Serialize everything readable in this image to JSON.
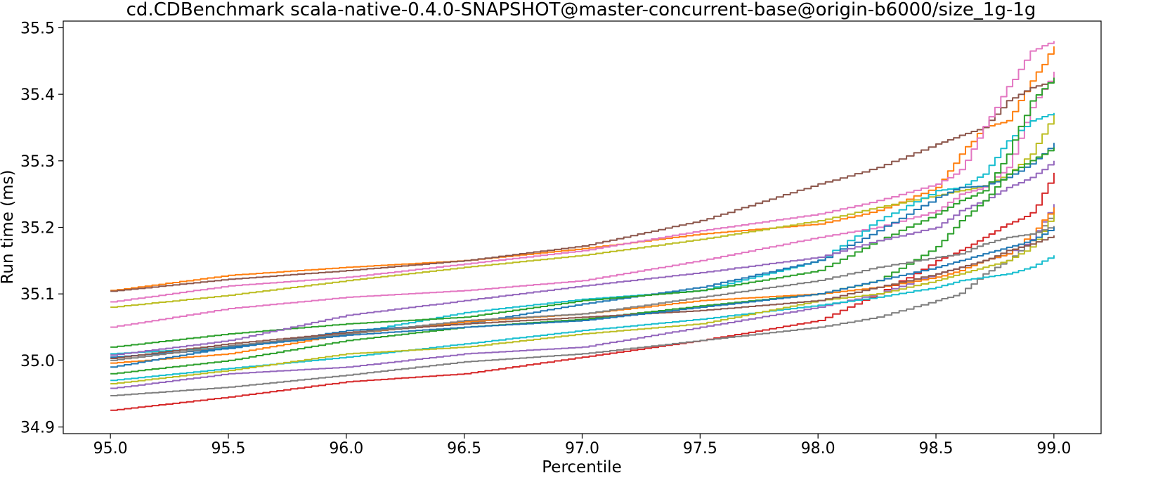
{
  "chart_data": {
    "type": "line",
    "title": "cd.CDBenchmark scala-native-0.4.0-SNAPSHOT@master-concurrent-base@origin-b6000/size_1g-1g",
    "xlabel": "Percentile",
    "ylabel": "Run time (ms)",
    "xlim": [
      94.8,
      99.2
    ],
    "ylim": [
      34.89,
      35.51
    ],
    "x_ticks": [
      "95.0",
      "95.5",
      "96.0",
      "96.5",
      "97.0",
      "97.5",
      "98.0",
      "98.5",
      "99.0"
    ],
    "y_ticks": [
      "34.9",
      "35.0",
      "35.1",
      "35.2",
      "35.3",
      "35.4",
      "35.5"
    ],
    "x_tick_values": [
      95.0,
      95.5,
      96.0,
      96.5,
      97.0,
      97.5,
      98.0,
      98.5,
      99.0
    ],
    "y_tick_values": [
      34.9,
      35.0,
      35.1,
      35.2,
      35.3,
      35.4,
      35.5
    ],
    "grid": false,
    "legend": "none",
    "x": [
      95.0,
      95.5,
      96.0,
      96.5,
      97.0,
      97.5,
      98.0,
      98.25,
      98.5,
      98.6,
      98.7,
      98.8,
      98.9,
      99.0
    ],
    "series": [
      {
        "color": "#ff7f0e",
        "values": [
          35.105,
          35.128,
          35.14,
          35.15,
          35.168,
          35.19,
          35.205,
          35.225,
          35.26,
          35.31,
          35.35,
          35.36,
          35.42,
          35.472
        ]
      },
      {
        "color": "#8c564b",
        "values": [
          35.104,
          35.122,
          35.135,
          35.15,
          35.172,
          35.21,
          35.265,
          35.29,
          35.325,
          35.338,
          35.35,
          35.39,
          35.41,
          35.42
        ]
      },
      {
        "color": "#e377c2",
        "values": [
          35.088,
          35.112,
          35.125,
          35.145,
          35.165,
          35.195,
          35.22,
          35.24,
          35.265,
          35.285,
          35.35,
          35.41,
          35.465,
          35.48
        ]
      },
      {
        "color": "#bcbd22",
        "values": [
          35.08,
          35.098,
          35.12,
          35.14,
          35.158,
          35.182,
          35.21,
          35.23,
          35.248,
          35.255,
          35.262,
          35.28,
          35.31,
          35.37
        ]
      },
      {
        "color": "#e377c2",
        "values": [
          35.05,
          35.078,
          35.095,
          35.105,
          35.12,
          35.15,
          35.185,
          35.2,
          35.225,
          35.25,
          35.26,
          35.29,
          35.38,
          35.434
        ]
      },
      {
        "color": "#17becf",
        "values": [
          35.01,
          35.02,
          35.04,
          35.072,
          35.092,
          35.105,
          35.15,
          35.21,
          35.255,
          35.26,
          35.28,
          35.33,
          35.36,
          35.372
        ]
      },
      {
        "color": "#1f77b4",
        "values": [
          35.005,
          35.018,
          35.045,
          35.055,
          35.085,
          35.11,
          35.15,
          35.195,
          35.245,
          35.26,
          35.262,
          35.275,
          35.295,
          35.327
        ]
      },
      {
        "color": "#2ca02c",
        "values": [
          35.02,
          35.04,
          35.055,
          35.065,
          35.09,
          35.105,
          35.135,
          35.18,
          35.22,
          35.24,
          35.255,
          35.31,
          35.39,
          35.425
        ]
      },
      {
        "color": "#9467bd",
        "values": [
          35.008,
          35.03,
          35.068,
          35.09,
          35.112,
          35.132,
          35.155,
          35.18,
          35.2,
          35.225,
          35.24,
          35.26,
          35.275,
          35.3
        ]
      },
      {
        "color": "#2ca02c",
        "values": [
          34.98,
          35.0,
          35.03,
          35.05,
          35.062,
          35.082,
          35.1,
          35.12,
          35.17,
          35.21,
          35.24,
          35.28,
          35.3,
          35.32
        ]
      },
      {
        "color": "#d62728",
        "values": [
          34.925,
          34.945,
          34.968,
          34.98,
          35.005,
          35.03,
          35.06,
          35.1,
          35.15,
          35.165,
          35.185,
          35.205,
          35.22,
          35.282
        ]
      },
      {
        "color": "#7f7f7f",
        "values": [
          34.947,
          34.96,
          34.978,
          34.998,
          35.01,
          35.03,
          35.05,
          35.065,
          35.09,
          35.1,
          35.13,
          35.15,
          35.18,
          35.225
        ]
      },
      {
        "color": "#9467bd",
        "values": [
          34.958,
          34.98,
          34.99,
          35.01,
          35.02,
          35.05,
          35.08,
          35.1,
          35.13,
          35.14,
          35.15,
          35.16,
          35.18,
          35.235
        ]
      },
      {
        "color": "#17becf",
        "values": [
          34.97,
          34.988,
          35.005,
          35.025,
          35.045,
          35.062,
          35.083,
          35.095,
          35.11,
          35.12,
          35.125,
          35.13,
          35.14,
          35.158
        ]
      },
      {
        "color": "#bcbd22",
        "values": [
          34.965,
          34.985,
          35.01,
          35.02,
          35.04,
          35.055,
          35.09,
          35.1,
          35.12,
          35.13,
          35.14,
          35.15,
          35.17,
          35.22
        ]
      },
      {
        "color": "#ff7f0e",
        "values": [
          34.996,
          35.01,
          35.04,
          35.058,
          35.07,
          35.09,
          35.1,
          35.11,
          35.125,
          35.135,
          35.15,
          35.16,
          35.19,
          35.23
        ]
      },
      {
        "color": "#8c564b",
        "values": [
          35.003,
          35.025,
          35.042,
          35.055,
          35.065,
          35.075,
          35.09,
          35.11,
          35.13,
          35.14,
          35.15,
          35.165,
          35.175,
          35.188
        ]
      },
      {
        "color": "#7f7f7f",
        "values": [
          35.0,
          35.022,
          35.04,
          35.06,
          35.07,
          35.095,
          35.12,
          35.14,
          35.155,
          35.16,
          35.175,
          35.185,
          35.19,
          35.202
        ]
      },
      {
        "color": "#1f77b4",
        "values": [
          34.99,
          35.02,
          35.038,
          35.05,
          35.06,
          35.08,
          35.1,
          35.12,
          35.14,
          35.15,
          35.16,
          35.17,
          35.18,
          35.2
        ]
      }
    ]
  }
}
